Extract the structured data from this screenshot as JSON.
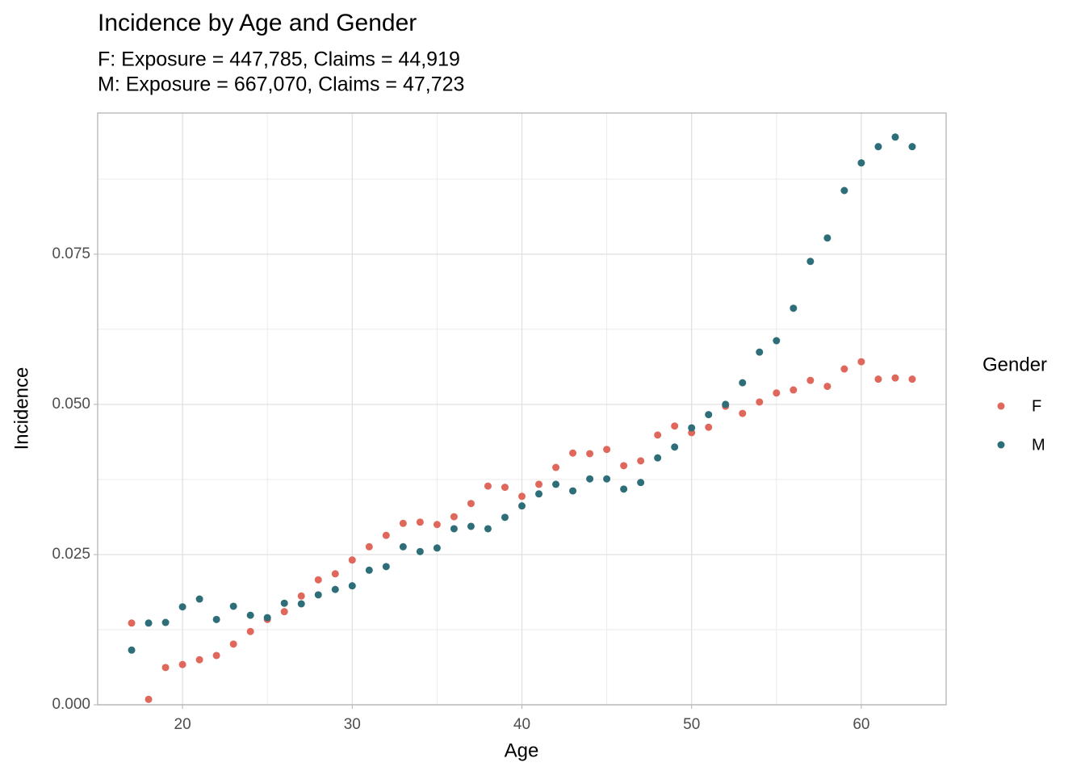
{
  "chart_data": {
    "type": "scatter",
    "title": "Incidence by Age and Gender",
    "subtitle": [
      "F: Exposure = 447,785, Claims = 44,919",
      "M: Exposure = 667,070, Claims = 47,723"
    ],
    "x_label": "Age",
    "y_label": "Incidence",
    "legend_title": "Gender",
    "legend_position": "right",
    "grid": true,
    "x": [
      17,
      18,
      19,
      20,
      21,
      22,
      23,
      24,
      25,
      26,
      27,
      28,
      29,
      30,
      31,
      32,
      33,
      34,
      35,
      36,
      37,
      38,
      39,
      40,
      41,
      42,
      43,
      44,
      45,
      46,
      47,
      48,
      49,
      50,
      51,
      52,
      53,
      54,
      55,
      56,
      57,
      58,
      59,
      60,
      61,
      62,
      63
    ],
    "series": [
      {
        "name": "F",
        "color": "#e0675b",
        "values": [
          0.0136,
          0.0009,
          0.0062,
          0.0067,
          0.0075,
          0.0082,
          0.0101,
          0.0122,
          0.0142,
          0.0155,
          0.0181,
          0.0208,
          0.0218,
          0.0241,
          0.0263,
          0.0282,
          0.0302,
          0.0304,
          0.03,
          0.0313,
          0.0335,
          0.0364,
          0.0362,
          0.0347,
          0.0367,
          0.0395,
          0.0419,
          0.0418,
          0.0425,
          0.0398,
          0.0406,
          0.0449,
          0.0464,
          0.0453,
          0.0462,
          0.0497,
          0.0485,
          0.0504,
          0.0519,
          0.0524,
          0.054,
          0.053,
          0.0559,
          0.0571,
          0.0542,
          0.0544,
          0.0542
        ]
      },
      {
        "name": "M",
        "color": "#2e6e78",
        "values": [
          0.0091,
          0.0136,
          0.0137,
          0.0163,
          0.0176,
          0.0142,
          0.0164,
          0.0149,
          0.0145,
          0.0169,
          0.0168,
          0.0183,
          0.0192,
          0.0198,
          0.0224,
          0.023,
          0.0263,
          0.0255,
          0.0261,
          0.0293,
          0.0297,
          0.0293,
          0.0312,
          0.0331,
          0.0351,
          0.0367,
          0.0356,
          0.0376,
          0.0376,
          0.0359,
          0.037,
          0.0411,
          0.0429,
          0.0461,
          0.0483,
          0.05,
          0.0536,
          0.0587,
          0.0606,
          0.066,
          0.0738,
          0.0777,
          0.0856,
          0.0902,
          0.0929,
          0.0945,
          0.0929
        ]
      }
    ],
    "xlim": [
      15,
      65
    ],
    "xticks": [
      20,
      30,
      40,
      50,
      60
    ],
    "ylim": [
      0,
      0.0985
    ],
    "yticks": [
      {
        "value": 0,
        "label": "0.000"
      },
      {
        "value": 0.025,
        "label": "0.025"
      },
      {
        "value": 0.05,
        "label": "0.050"
      },
      {
        "value": 0.075,
        "label": "0.075"
      }
    ]
  }
}
